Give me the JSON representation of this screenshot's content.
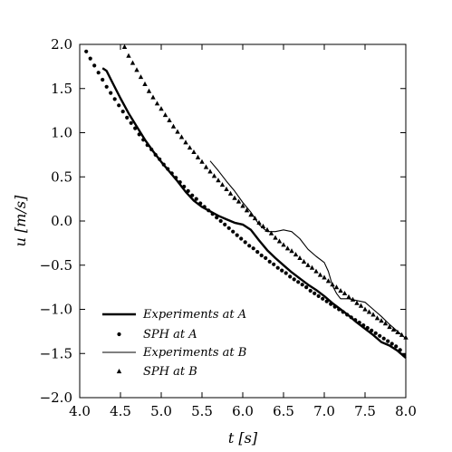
{
  "chart_data": {
    "type": "line",
    "xlabel": "t [s]",
    "ylabel": "u [m/s]",
    "xlim": [
      4.0,
      8.0
    ],
    "ylim": [
      -2.0,
      2.0
    ],
    "x_ticks": [
      "4.0",
      "4.5",
      "5.0",
      "5.5",
      "6.0",
      "6.5",
      "7.0",
      "7.5",
      "8.0"
    ],
    "y_ticks": [
      "2.0",
      "1.5",
      "1.0",
      "0.5",
      "0.0",
      "−0.5",
      "−1.0",
      "−1.5",
      "−2.0"
    ],
    "grid": false,
    "legend_position": "lower-left",
    "series": [
      {
        "name": "Experiments at A",
        "style": "thick-line",
        "color": "#000000",
        "x": [
          4.28,
          4.33,
          4.4,
          4.5,
          4.6,
          4.7,
          4.8,
          4.9,
          5.0,
          5.1,
          5.2,
          5.3,
          5.4,
          5.5,
          5.6,
          5.7,
          5.8,
          5.9,
          6.0,
          6.1,
          6.2,
          6.3,
          6.4,
          6.5,
          6.6,
          6.7,
          6.8,
          6.9,
          7.0,
          7.1,
          7.2,
          7.3,
          7.4,
          7.5,
          7.6,
          7.7,
          7.8,
          7.9,
          8.0
        ],
        "y": [
          1.73,
          1.7,
          1.57,
          1.39,
          1.22,
          1.07,
          0.92,
          0.79,
          0.67,
          0.56,
          0.45,
          0.33,
          0.23,
          0.16,
          0.11,
          0.06,
          0.02,
          -0.02,
          -0.04,
          -0.1,
          -0.22,
          -0.33,
          -0.42,
          -0.5,
          -0.58,
          -0.65,
          -0.72,
          -0.78,
          -0.85,
          -0.93,
          -1.0,
          -1.07,
          -1.15,
          -1.22,
          -1.29,
          -1.37,
          -1.41,
          -1.47,
          -1.55
        ]
      },
      {
        "name": "SPH at A",
        "style": "dots",
        "color": "#000000",
        "x": [
          4.08,
          4.13,
          4.18,
          4.23,
          4.28,
          4.33,
          4.38,
          4.43,
          4.48,
          4.53,
          4.58,
          4.63,
          4.68,
          4.73,
          4.78,
          4.83,
          4.88,
          4.93,
          4.98,
          5.03,
          5.08,
          5.13,
          5.18,
          5.23,
          5.28,
          5.33,
          5.38,
          5.43,
          5.48,
          5.53,
          5.58,
          5.63,
          5.68,
          5.73,
          5.78,
          5.83,
          5.88,
          5.93,
          5.98,
          6.03,
          6.08,
          6.13,
          6.18,
          6.23,
          6.28,
          6.33,
          6.38,
          6.43,
          6.48,
          6.53,
          6.58,
          6.63,
          6.68,
          6.73,
          6.78,
          6.83,
          6.88,
          6.93,
          6.98,
          7.03,
          7.08,
          7.13,
          7.18,
          7.23,
          7.28,
          7.33,
          7.38,
          7.43,
          7.48,
          7.53,
          7.58,
          7.63,
          7.68,
          7.73,
          7.78,
          7.83,
          7.88,
          7.93,
          7.98
        ],
        "y": [
          1.92,
          1.84,
          1.76,
          1.68,
          1.6,
          1.52,
          1.45,
          1.38,
          1.31,
          1.24,
          1.17,
          1.11,
          1.05,
          0.98,
          0.92,
          0.86,
          0.81,
          0.75,
          0.7,
          0.64,
          0.59,
          0.54,
          0.49,
          0.44,
          0.39,
          0.34,
          0.29,
          0.25,
          0.2,
          0.16,
          0.12,
          0.08,
          0.04,
          0.0,
          -0.04,
          -0.08,
          -0.12,
          -0.16,
          -0.2,
          -0.24,
          -0.28,
          -0.31,
          -0.35,
          -0.39,
          -0.42,
          -0.46,
          -0.49,
          -0.53,
          -0.56,
          -0.59,
          -0.63,
          -0.66,
          -0.69,
          -0.72,
          -0.75,
          -0.79,
          -0.82,
          -0.85,
          -0.88,
          -0.91,
          -0.94,
          -0.97,
          -1.0,
          -1.03,
          -1.06,
          -1.09,
          -1.12,
          -1.15,
          -1.18,
          -1.21,
          -1.24,
          -1.27,
          -1.3,
          -1.33,
          -1.36,
          -1.39,
          -1.42,
          -1.46,
          -1.52
        ]
      },
      {
        "name": "Experiments at B",
        "style": "thin-line",
        "color": "#000000",
        "x": [
          5.6,
          5.7,
          5.8,
          5.9,
          6.0,
          6.1,
          6.2,
          6.3,
          6.4,
          6.5,
          6.6,
          6.7,
          6.8,
          6.9,
          7.0,
          7.05,
          7.1,
          7.15,
          7.2,
          7.3,
          7.4,
          7.5,
          7.6,
          7.7,
          7.8,
          7.9,
          8.0
        ],
        "y": [
          0.68,
          0.57,
          0.45,
          0.34,
          0.21,
          0.1,
          -0.04,
          -0.12,
          -0.12,
          -0.1,
          -0.12,
          -0.2,
          -0.32,
          -0.4,
          -0.47,
          -0.57,
          -0.73,
          -0.82,
          -0.88,
          -0.88,
          -0.9,
          -0.92,
          -1.0,
          -1.08,
          -1.17,
          -1.25,
          -1.33
        ]
      },
      {
        "name": "SPH at B",
        "style": "triangles",
        "color": "#000000",
        "x": [
          4.55,
          4.6,
          4.65,
          4.7,
          4.75,
          4.8,
          4.85,
          4.9,
          4.95,
          5.0,
          5.05,
          5.1,
          5.15,
          5.2,
          5.25,
          5.3,
          5.35,
          5.4,
          5.45,
          5.5,
          5.55,
          5.6,
          5.65,
          5.7,
          5.75,
          5.8,
          5.85,
          5.9,
          5.95,
          6.0,
          6.05,
          6.1,
          6.15,
          6.2,
          6.25,
          6.3,
          6.35,
          6.4,
          6.45,
          6.5,
          6.55,
          6.6,
          6.65,
          6.7,
          6.75,
          6.8,
          6.85,
          6.9,
          6.95,
          7.0,
          7.05,
          7.1,
          7.15,
          7.2,
          7.25,
          7.3,
          7.35,
          7.4,
          7.45,
          7.5,
          7.55,
          7.6,
          7.65,
          7.7,
          7.75,
          7.8,
          7.85,
          7.9,
          7.95,
          8.0
        ],
        "y": [
          1.97,
          1.87,
          1.79,
          1.71,
          1.63,
          1.55,
          1.47,
          1.4,
          1.33,
          1.27,
          1.2,
          1.14,
          1.07,
          1.01,
          0.95,
          0.89,
          0.83,
          0.78,
          0.72,
          0.67,
          0.61,
          0.56,
          0.51,
          0.46,
          0.41,
          0.36,
          0.31,
          0.26,
          0.22,
          0.17,
          0.12,
          0.07,
          0.03,
          -0.02,
          -0.06,
          -0.1,
          -0.14,
          -0.19,
          -0.23,
          -0.27,
          -0.31,
          -0.34,
          -0.38,
          -0.42,
          -0.46,
          -0.5,
          -0.53,
          -0.57,
          -0.61,
          -0.64,
          -0.68,
          -0.72,
          -0.75,
          -0.79,
          -0.82,
          -0.86,
          -0.89,
          -0.93,
          -0.96,
          -1.0,
          -1.03,
          -1.06,
          -1.1,
          -1.13,
          -1.16,
          -1.2,
          -1.23,
          -1.26,
          -1.29,
          -1.32
        ]
      }
    ]
  }
}
